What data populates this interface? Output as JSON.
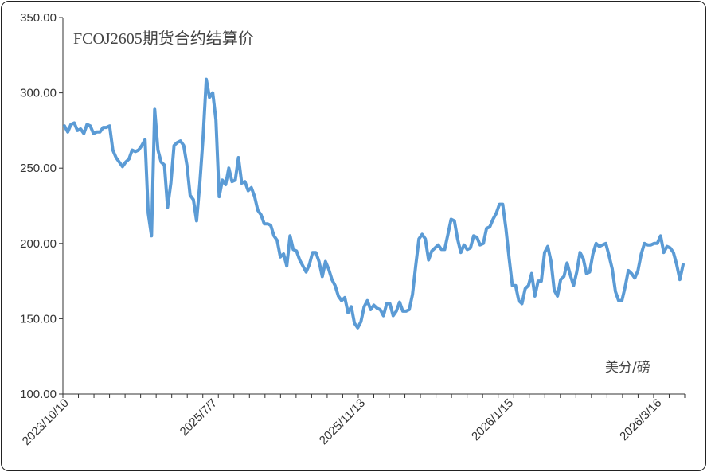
{
  "chart_data": {
    "type": "line",
    "title": "FCOJ2605期货合约结算价",
    "unit_label": "美分/磅",
    "ylim": [
      100,
      350
    ],
    "y_ticks": [
      "100.00",
      "150.00",
      "200.00",
      "250.00",
      "300.00",
      "350.00"
    ],
    "x_tick_labels": [
      {
        "label": "2023/10/10",
        "index": 0
      },
      {
        "label": "2025/7/7",
        "index": 46
      },
      {
        "label": "2025/11/13",
        "index": 92
      },
      {
        "label": "2026/1/15",
        "index": 138
      },
      {
        "label": "2026/3/16",
        "index": 184
      }
    ],
    "series_color": "#5b9bd5",
    "series": [
      {
        "values": [
          278,
          274,
          279,
          280,
          275,
          276,
          273,
          279,
          278,
          273,
          274,
          274,
          277,
          277,
          278,
          262,
          257,
          254,
          251,
          254,
          256,
          262,
          261,
          262,
          265,
          269,
          220,
          205,
          289,
          262,
          254,
          252,
          224,
          240,
          265,
          267,
          268,
          265,
          252,
          232,
          229,
          215,
          240,
          270,
          309,
          297,
          300,
          282,
          231,
          242,
          239,
          250,
          241,
          242,
          257,
          240,
          241,
          235,
          237,
          231,
          222,
          219,
          213,
          213,
          212,
          205,
          202,
          191,
          193,
          185,
          205,
          196,
          195,
          189,
          185,
          181,
          186,
          194,
          194,
          188,
          178,
          188,
          183,
          176,
          172,
          165,
          162,
          164,
          154,
          158,
          147,
          144,
          148,
          158,
          162,
          156,
          159,
          157,
          156,
          152,
          160,
          160,
          152,
          155,
          161,
          155,
          155,
          156,
          166,
          185,
          203,
          206,
          203,
          189,
          195,
          197,
          199,
          196,
          196,
          206,
          216,
          215,
          203,
          194,
          199,
          196,
          197,
          205,
          204,
          199,
          200,
          210,
          211,
          216,
          220,
          226,
          226,
          210,
          190,
          172,
          172,
          162,
          160,
          170,
          172,
          180,
          165,
          175,
          175,
          194,
          198,
          188,
          169,
          165,
          176,
          178,
          187,
          179,
          172,
          181,
          194,
          190,
          180,
          181,
          193,
          200,
          198,
          199,
          200,
          192,
          183,
          168,
          162,
          162,
          171,
          182,
          180,
          177,
          182,
          193,
          200,
          199,
          199,
          200,
          200,
          205,
          194,
          198,
          197,
          194,
          186,
          176,
          186
        ]
      }
    ]
  }
}
